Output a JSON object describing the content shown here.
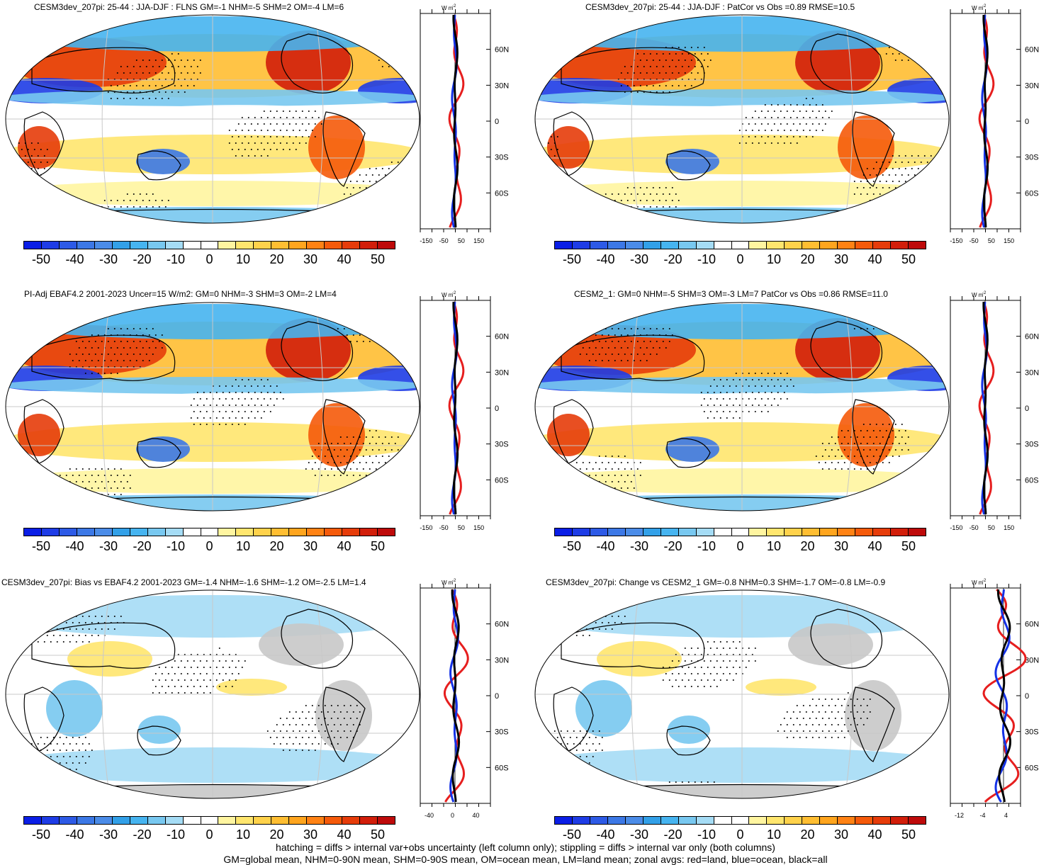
{
  "panels": [
    {
      "title": "CESM3dev_207pi: 25-44 : JJA-DJF : FLNS GM=-1 NHM=-5 SHM=2 OM=-4 LM=6"
    },
    {
      "title": "CESM3dev_207pi: 25-44 : JJA-DJF : PatCor vs Obs =0.89 RMSE=10.5"
    },
    {
      "title": "PI-Adj EBAF4.2 2001-2023 Uncer=15 W/m2: GM=0 NHM=-3 SHM=3 OM=-2 LM=4"
    },
    {
      "title": "CESM2_1: GM=0 NHM=-5 SHM=3 OM=-3 LM=7 PatCor vs Obs =0.86 RMSE=11.0"
    },
    {
      "title": "CESM3dev_207pi: Bias vs EBAF4.2 2001-2023 GM=-1.4 NHM=-1.6 SHM=-1.2 OM=-2.5 LM=1.4"
    },
    {
      "title": "CESM3dev_207pi: Change vs CESM2_1 GM=-0.8 NHM=0.3 SHM=-1.7 OM=-0.8 LM=-0.9"
    }
  ],
  "colorbar": {
    "labels": [
      "-50",
      "-40",
      "-30",
      "-20",
      "-10",
      "0",
      "10",
      "20",
      "30",
      "40",
      "50"
    ],
    "colors": [
      "#0a1ee6",
      "#1e3ce6",
      "#2d5ae6",
      "#3c78e6",
      "#4b8ce8",
      "#32a0e8",
      "#46b4f0",
      "#78c8f0",
      "#a5dcf5",
      "#ffffff",
      "#ffffff",
      "#fff5a0",
      "#ffe66e",
      "#ffd24b",
      "#ffbe32",
      "#ffa51e",
      "#ff8214",
      "#f55a0a",
      "#e63c0a",
      "#d21e0a",
      "#be0a0a"
    ]
  },
  "zonal": {
    "unit": "W m",
    "unit_sup": "-2",
    "lat_labels": [
      "60N",
      "30N",
      "0",
      "30S",
      "60S"
    ],
    "x_labels_a": [
      "-150",
      "-50",
      "50",
      "150"
    ],
    "x_labels_bias": [
      "-40",
      "0",
      "40"
    ],
    "x_labels_change": [
      "-12",
      "-4",
      "4"
    ]
  },
  "chart_data": [
    {
      "type": "heatmap",
      "title": "CESM3dev_207pi: 25-44 : JJA-DJF : FLNS GM=-1 NHM=-5 SHM=2 OM=-4 LM=6",
      "colorbar_range": [
        -50,
        50
      ],
      "zonal_avg": {
        "xlim": [
          -150,
          150
        ],
        "ylabels": [
          "60N",
          "30N",
          "0",
          "30S",
          "60S"
        ],
        "series": [
          {
            "name": "land",
            "color": "red"
          },
          {
            "name": "ocean",
            "color": "blue"
          },
          {
            "name": "all",
            "color": "black"
          }
        ]
      }
    },
    {
      "type": "heatmap",
      "title": "CESM3dev_207pi: 25-44 : JJA-DJF : PatCor vs Obs =0.89 RMSE=10.5",
      "colorbar_range": [
        -50,
        50
      ],
      "zonal_avg": {
        "xlim": [
          -150,
          150
        ]
      }
    },
    {
      "type": "heatmap",
      "title": "PI-Adj EBAF4.2 2001-2023 Uncer=15 W/m2: GM=0 NHM=-3 SHM=3 OM=-2 LM=4",
      "colorbar_range": [
        -50,
        50
      ],
      "zonal_avg": {
        "xlim": [
          -150,
          150
        ]
      }
    },
    {
      "type": "heatmap",
      "title": "CESM2_1: GM=0 NHM=-5 SHM=3 OM=-3 LM=7 PatCor vs Obs =0.86 RMSE=11.0",
      "colorbar_range": [
        -50,
        50
      ],
      "zonal_avg": {
        "xlim": [
          -150,
          150
        ]
      }
    },
    {
      "type": "heatmap",
      "title": "CESM3dev_207pi: Bias vs EBAF4.2 2001-2023 GM=-1.4 NHM=-1.6 SHM=-1.2 OM=-2.5 LM=1.4",
      "colorbar_range": [
        -50,
        50
      ],
      "zonal_avg": {
        "xlim": [
          -50,
          50
        ]
      }
    },
    {
      "type": "heatmap",
      "title": "CESM3dev_207pi: Change vs CESM2_1 GM=-0.8 NHM=0.3 SHM=-1.7 OM=-0.8 LM=-0.9",
      "colorbar_range": [
        -50,
        50
      ],
      "zonal_avg": {
        "xlim": [
          -15,
          8
        ]
      }
    }
  ],
  "footer": {
    "line1": "hatching = diffs > internal var+obs uncertainty (left column only); stippling = diffs > internal var only (both columns)",
    "line2": "GM=global mean, NHM=0-90N mean, SHM=0-90S mean, OM=ocean mean, LM=land mean; zonal avgs: red=land, blue=ocean, black=all"
  }
}
